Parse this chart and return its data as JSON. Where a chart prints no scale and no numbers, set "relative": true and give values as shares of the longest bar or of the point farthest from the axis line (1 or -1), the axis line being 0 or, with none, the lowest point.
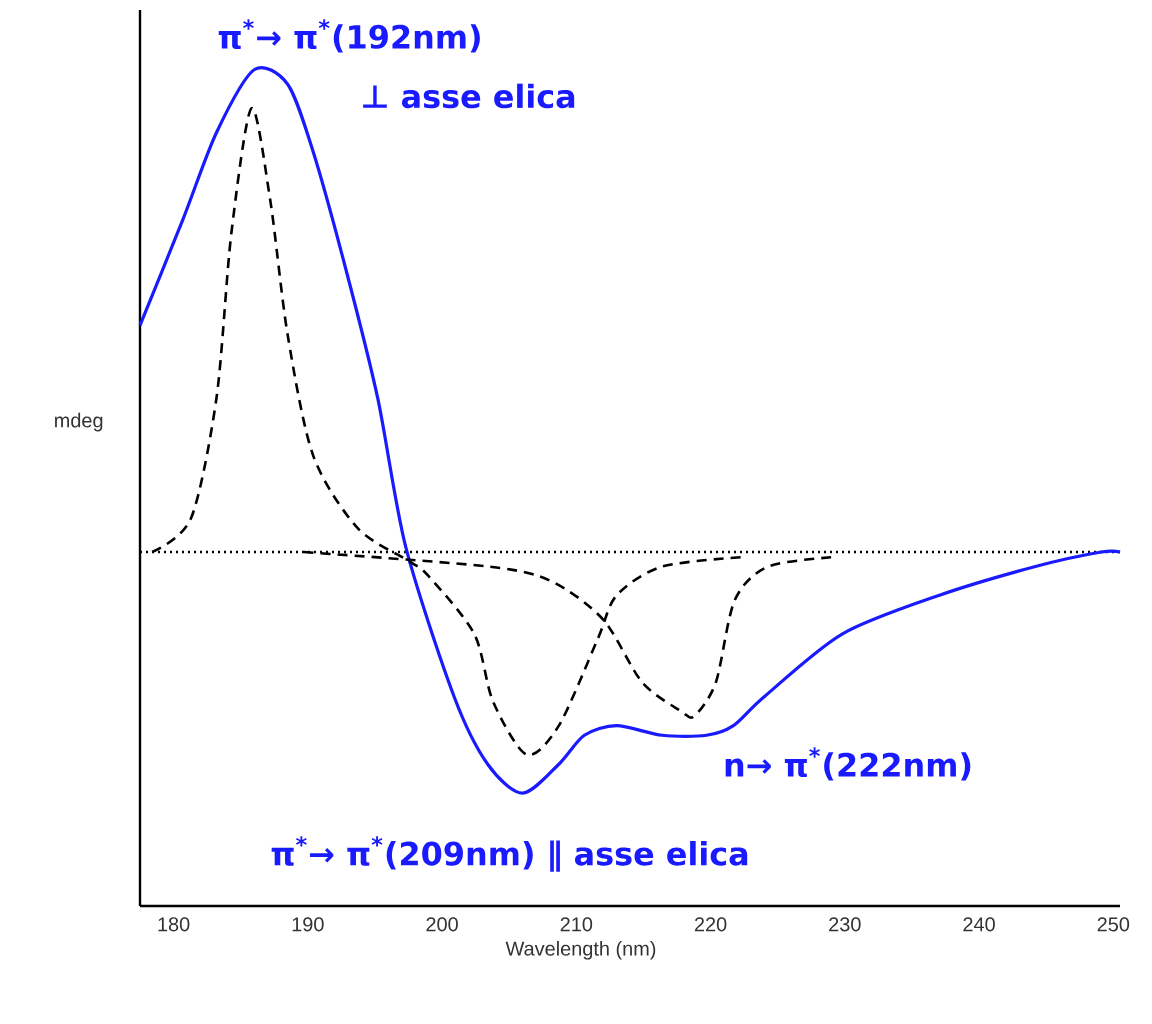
{
  "chart_data": {
    "type": "line",
    "relative": true,
    "xlabel": "Wavelength (nm)",
    "ylabel": "mdeg",
    "xlim": [
      177.5,
      250.5
    ],
    "xticks": [
      180,
      190,
      200,
      210,
      220,
      230,
      240,
      250
    ],
    "annotations": [
      "π$^{*}$→ π$^{*}$(192nm)",
      "⊥ asse elica",
      "n→ π$^{*}$(222nm)",
      "π$^{*}$→ π$^{*}$(209nm) ∥ asse elica"
    ],
    "ref_lines": [
      {
        "axis": "y",
        "value": 0,
        "line_style": "dotted",
        "color": "#000000"
      }
    ],
    "series": [
      {
        "color": "#1a1aff",
        "line_style": "solid",
        "x": [
          177.5,
          180.7,
          183.2,
          186.0,
          188.5,
          190.4,
          192.8,
          195.2,
          197.3,
          200.9,
          203.4,
          206.0,
          208.7,
          210.6,
          213.0,
          216.4,
          219.7,
          221.7,
          224.0,
          229.8,
          237.0,
          244.2,
          249.1,
          250.5
        ],
        "values": [
          0.47,
          0.69,
          0.87,
          1.0,
          0.97,
          0.83,
          0.59,
          0.32,
          0.01,
          -0.3,
          -0.44,
          -0.5,
          -0.44,
          -0.38,
          -0.36,
          -0.38,
          -0.38,
          -0.36,
          -0.3,
          -0.17,
          -0.09,
          -0.03,
          0,
          0
        ]
      },
      {
        "color": "#000000",
        "line_style": "dashed",
        "x": [
          178.4,
          181.3,
          183.2,
          184.3,
          185.8,
          187.2,
          188.5,
          190.4,
          193.7,
          197.6,
          199.0,
          202.4,
          203.8,
          206.3,
          208.7,
          211.6,
          213.0,
          216.4,
          222.6
        ],
        "values": [
          0,
          0.07,
          0.32,
          0.66,
          0.92,
          0.73,
          0.45,
          0.2,
          0.05,
          -0.02,
          -0.05,
          -0.17,
          -0.31,
          -0.42,
          -0.36,
          -0.18,
          -0.09,
          -0.03,
          -0.01
        ]
      },
      {
        "color": "#000000",
        "line_style": "dashed",
        "x": [
          189.7,
          203.4,
          208.1,
          212.0,
          214.9,
          217.8,
          218.8,
          220.4,
          221.8,
          224.3,
          229.4
        ],
        "values": [
          0,
          -0.03,
          -0.06,
          -0.14,
          -0.27,
          -0.33,
          -0.34,
          -0.27,
          -0.1,
          -0.03,
          -0.01
        ]
      }
    ]
  }
}
